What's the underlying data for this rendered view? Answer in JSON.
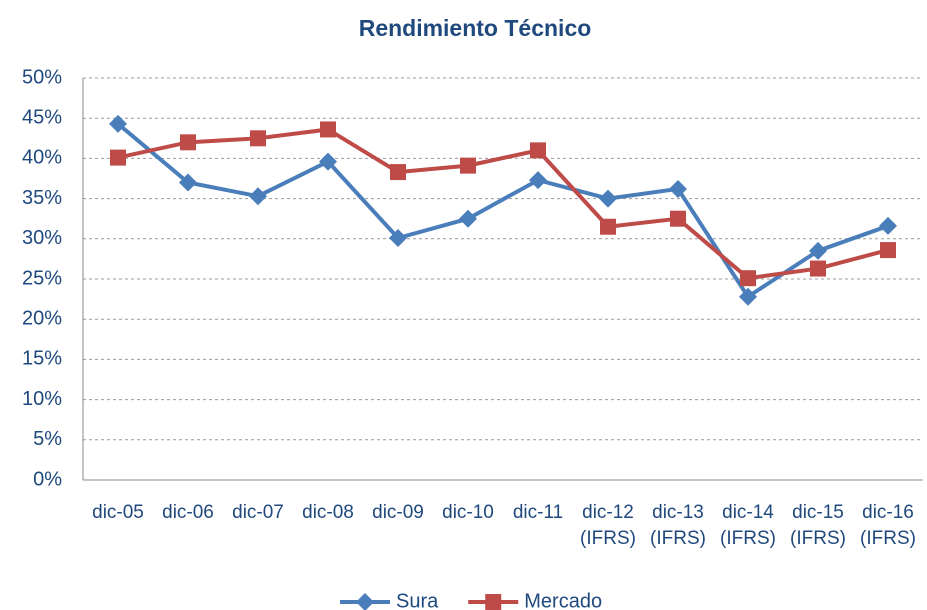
{
  "chart_data": {
    "type": "line",
    "title": "Rendimiento Técnico",
    "categories": [
      "dic-05",
      "dic-06",
      "dic-07",
      "dic-08",
      "dic-09",
      "dic-10",
      "dic-11",
      "dic-12 (IFRS)",
      "dic-13 (IFRS)",
      "dic-14 (IFRS)",
      "dic-15 (IFRS)",
      "dic-16 (IFRS)"
    ],
    "series": [
      {
        "name": "Sura",
        "color": "#4a7ebb",
        "marker": "diamond",
        "values": [
          44.3,
          37.0,
          35.3,
          39.6,
          30.1,
          32.5,
          37.3,
          35.0,
          36.2,
          22.8,
          28.5,
          31.6
        ]
      },
      {
        "name": "Mercado",
        "color": "#be4b48",
        "marker": "square",
        "values": [
          40.1,
          42.0,
          42.5,
          43.6,
          38.3,
          39.1,
          41.0,
          31.5,
          32.5,
          25.1,
          26.3,
          28.6
        ]
      }
    ],
    "ylim": [
      0,
      50
    ],
    "yticks": [
      {
        "value": 0,
        "label": "0%"
      },
      {
        "value": 5,
        "label": "5%"
      },
      {
        "value": 10,
        "label": "10%"
      },
      {
        "value": 15,
        "label": "15%"
      },
      {
        "value": 20,
        "label": "20%"
      },
      {
        "value": 25,
        "label": "25%"
      },
      {
        "value": 30,
        "label": "30%"
      },
      {
        "value": 35,
        "label": "35%"
      },
      {
        "value": 40,
        "label": "40%"
      },
      {
        "value": 45,
        "label": "45%"
      },
      {
        "value": 50,
        "label": "50%"
      }
    ],
    "grid": true,
    "legend": "bottom"
  }
}
